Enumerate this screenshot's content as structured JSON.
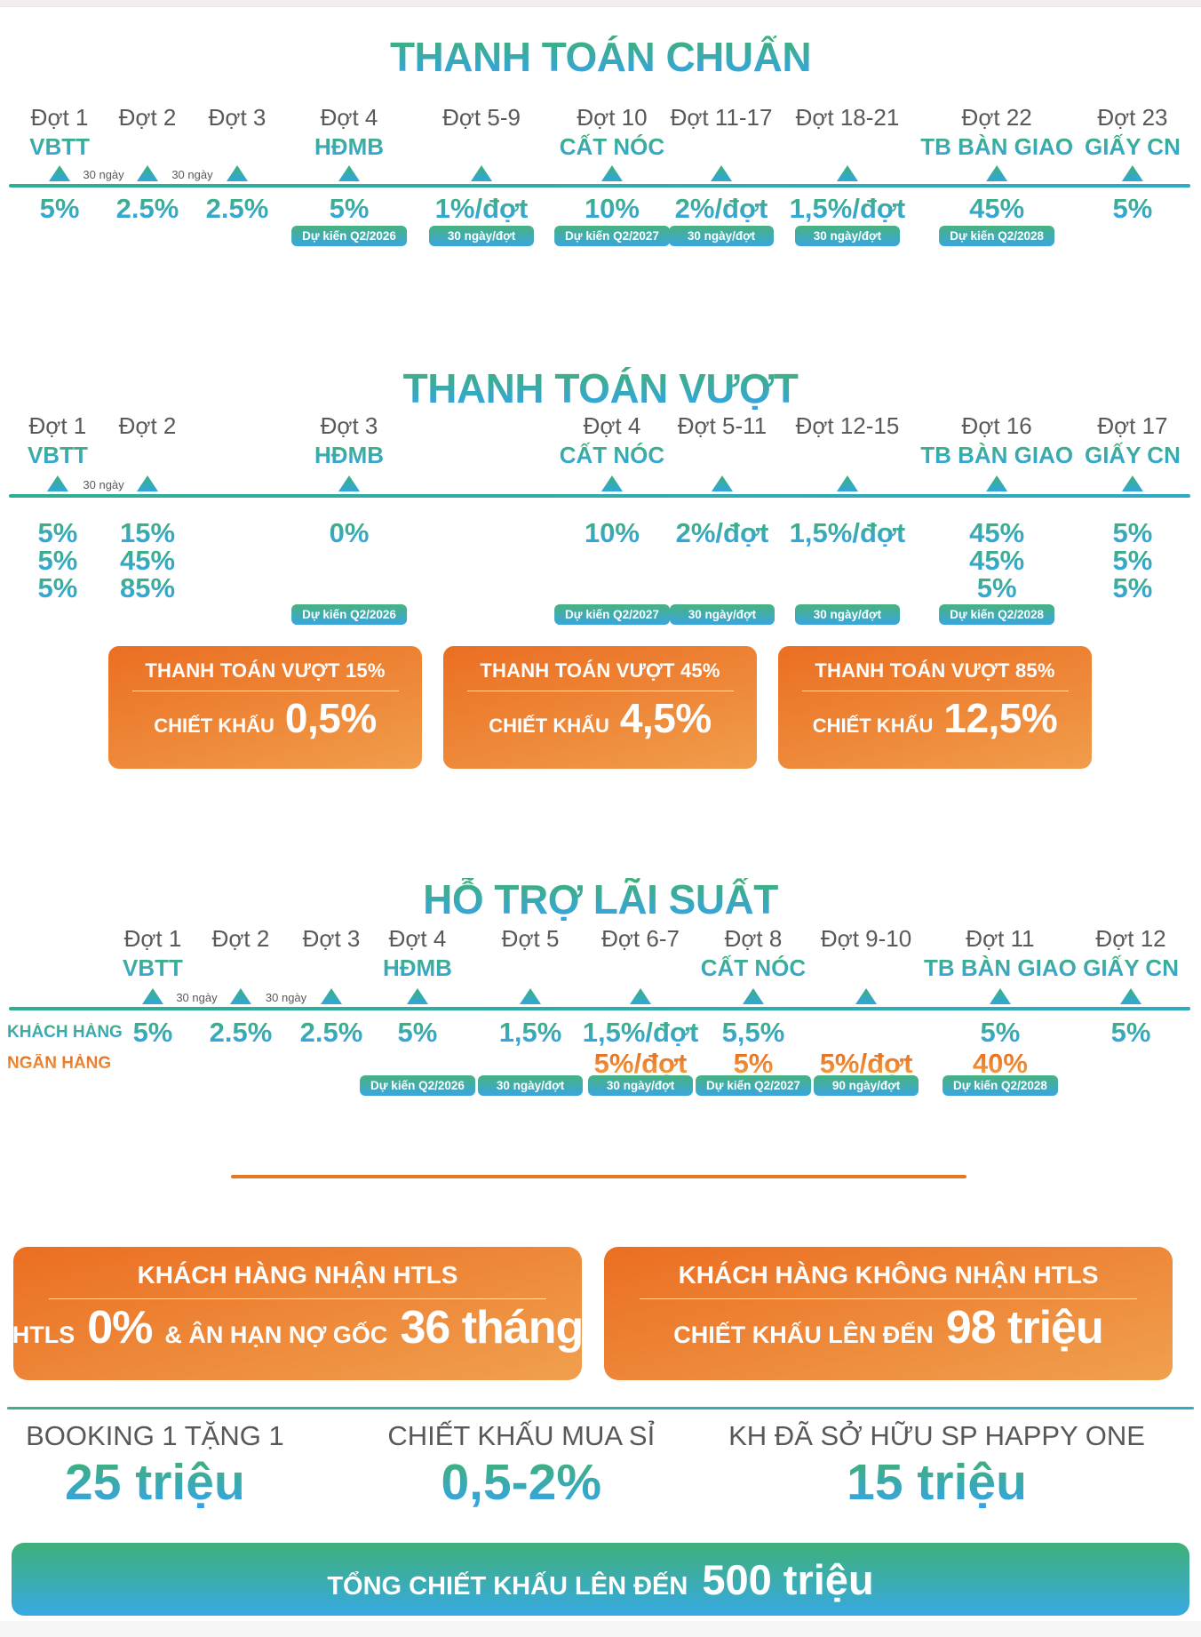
{
  "colors": {
    "accent_green": "#3FAE7C",
    "accent_blue": "#36A6E2",
    "accent_teal_line": "#2FAEA0",
    "accent_orange": "#EB7524",
    "gray_text": "#58595B"
  },
  "timelines": [
    {
      "id": "standard",
      "title": "THANH TOÁN CHUẨN",
      "gaps": [
        {
          "text": "30 ngày",
          "x": 8.62
        },
        {
          "text": "30 ngày",
          "x": 16.01
        }
      ],
      "columns": [
        {
          "dot": "Đợt 1",
          "milestone": "VBTT",
          "x": 4.96,
          "values": [
            "5%"
          ]
        },
        {
          "dot": "Đợt 2",
          "x": 12.28,
          "values": [
            "2.5%"
          ]
        },
        {
          "dot": "Đợt 3",
          "x": 19.75,
          "values": [
            "2.5%"
          ]
        },
        {
          "dot": "Đợt 4",
          "milestone": "HĐMB",
          "x": 29.07,
          "values": [
            "5%"
          ],
          "badge": "Dự kiến Q2/2026"
        },
        {
          "dot": "Đợt 5-9",
          "x": 40.09,
          "values": [
            "1%/đợt"
          ],
          "badge": "30 ngày/đợt"
        },
        {
          "dot": "Đợt 10",
          "milestone": "CẤT NÓC",
          "x": 50.96,
          "values": [
            "10%"
          ],
          "badge": "Dự kiến Q2/2027"
        },
        {
          "dot": "Đợt 11-17",
          "x": 60.06,
          "values": [
            "2%/đợt"
          ],
          "badge": "30 ngày/đợt"
        },
        {
          "dot": "Đợt 18-21",
          "x": 70.56,
          "values": [
            "1,5%/đợt"
          ],
          "badge": "30 ngày/đợt"
        },
        {
          "dot": "Đợt 22",
          "milestone": "TB BÀN GIAO",
          "x": 83.0,
          "values": [
            "45%"
          ],
          "badge": "Dự kiến Q2/2028"
        },
        {
          "dot": "Đợt 23",
          "milestone": "GIẤY CN",
          "x": 94.3,
          "values": [
            "5%"
          ]
        }
      ]
    },
    {
      "id": "overpay",
      "title": "THANH TOÁN VƯỢT",
      "gaps": [
        {
          "text": "30 ngày",
          "x": 8.62
        }
      ],
      "columns": [
        {
          "dot": "Đợt 1",
          "milestone": "VBTT",
          "x": 4.8,
          "values": [
            "5%",
            "5%",
            "5%"
          ]
        },
        {
          "dot": "Đợt 2",
          "x": 12.28,
          "values": [
            "15%",
            "45%",
            "85%"
          ]
        },
        {
          "dot": "Đợt 3",
          "milestone": "HĐMB",
          "x": 29.07,
          "values": [
            "0%"
          ],
          "badge": "Dự kiến Q2/2026"
        },
        {
          "dot": "Đợt 4",
          "milestone": "CẤT NÓC",
          "x": 50.96,
          "values": [
            "10%"
          ],
          "badge": "Dự kiến Q2/2027"
        },
        {
          "dot": "Đợt 5-11",
          "x": 60.13,
          "values": [
            "2%/đợt"
          ],
          "badge": "30 ngày/đợt"
        },
        {
          "dot": "Đợt 12-15",
          "x": 70.56,
          "values": [
            "1,5%/đợt"
          ],
          "badge": "30 ngày/đợt"
        },
        {
          "dot": "Đợt 16",
          "milestone": "TB BÀN GIAO",
          "x": 83.0,
          "values": [
            "45%",
            "45%",
            "5%"
          ],
          "badge": "Dự kiến Q2/2028"
        },
        {
          "dot": "Đợt 17",
          "milestone": "GIẤY CN",
          "x": 94.3,
          "values": [
            "5%",
            "5%",
            "5%"
          ]
        }
      ]
    },
    {
      "id": "htls",
      "title": "HỖ TRỢ LÃI SUẤT",
      "row_labels": [
        {
          "text": "KHÁCH HÀNG",
          "style": "gradient"
        },
        {
          "text": "NGÂN HÀNG",
          "style": "orange"
        }
      ],
      "value_row_styles": [
        "gradient",
        "orange"
      ],
      "gaps": [
        {
          "text": "30 ngày",
          "x": 16.38
        },
        {
          "text": "30 ngày",
          "x": 23.82
        }
      ],
      "columns": [
        {
          "dot": "Đợt 1",
          "milestone": "VBTT",
          "x": 12.72,
          "values": [
            "5%"
          ]
        },
        {
          "dot": "Đợt 2",
          "x": 20.04,
          "values": [
            "2.5%"
          ]
        },
        {
          "dot": "Đợt 3",
          "x": 27.59,
          "values": [
            "2.5%"
          ]
        },
        {
          "dot": "Đợt 4",
          "milestone": "HĐMB",
          "x": 34.76,
          "values": [
            "5%"
          ],
          "badge": "Dự kiến Q2/2026"
        },
        {
          "dot": "Đợt 5",
          "x": 44.16,
          "values": [
            "1,5%"
          ],
          "badge": "30 ngày/đợt"
        },
        {
          "dot": "Đợt 6-7",
          "x": 53.33,
          "values": [
            "1,5%/đợt",
            "5%/đợt"
          ],
          "badge": "30 ngày/đợt"
        },
        {
          "dot": "Đợt 8",
          "milestone": "CẤT NÓC",
          "x": 62.72,
          "values": [
            "5,5%",
            "5%"
          ],
          "badge": "Dự kiến Q2/2027"
        },
        {
          "dot": "Đợt 9-10",
          "x": 72.12,
          "values": [
            "",
            "5%/đợt"
          ],
          "badge": "90 ngày/đợt"
        },
        {
          "dot": "Đợt 11",
          "milestone": "TB BÀN GIAO",
          "x": 83.28,
          "values": [
            "5%",
            "40%"
          ],
          "badge": "Dự kiến Q2/2028"
        },
        {
          "dot": "Đợt 12",
          "milestone": "GIẤY CN",
          "x": 94.16,
          "values": [
            "5%"
          ]
        }
      ]
    }
  ],
  "discount_boxes": [
    {
      "title": "THANH TOÁN VƯỢT 15%",
      "label": "CHIẾT KHẤU",
      "value": "0,5%"
    },
    {
      "title": "THANH TOÁN VƯỢT 45%",
      "label": "CHIẾT KHẤU",
      "value": "4,5%"
    },
    {
      "title": "THANH TOÁN VƯỢT 85%",
      "label": "CHIẾT KHẤU",
      "value": "12,5%"
    }
  ],
  "htls_boxes": [
    {
      "title": "KHÁCH HÀNG NHẬN HTLS",
      "parts": [
        {
          "text": "HTLS",
          "size": "small"
        },
        {
          "text": "0%",
          "size": "big"
        },
        {
          "text": "& ÂN HẠN NỢ GỐC",
          "size": "small"
        },
        {
          "text": "36 tháng",
          "size": "big"
        }
      ]
    },
    {
      "title": "KHÁCH HÀNG KHÔNG NHẬN HTLS",
      "parts": [
        {
          "text": "CHIẾT KHẤU LÊN ĐẾN",
          "size": "small"
        },
        {
          "text": "98 triệu",
          "size": "big"
        }
      ]
    }
  ],
  "offers": [
    {
      "label": "BOOKING 1 TẶNG 1",
      "value": "25 triệu"
    },
    {
      "label": "CHIẾT KHẤU MUA SỈ",
      "value": "0,5-2%"
    },
    {
      "label": "KH ĐÃ SỞ HỮU SP HAPPY ONE",
      "value": "15 triệu"
    }
  ],
  "total_bar": {
    "label": "TỔNG CHIẾT KHẤU LÊN ĐẾN",
    "value": "500 triệu"
  }
}
